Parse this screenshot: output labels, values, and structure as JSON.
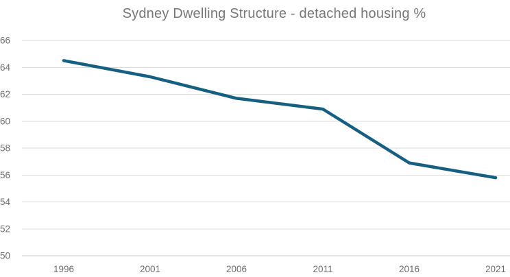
{
  "chart_data": {
    "type": "line",
    "title": "Sydney Dwelling Structure - detached housing %",
    "categories": [
      "1996",
      "2001",
      "2006",
      "2011",
      "2016",
      "2021"
    ],
    "series": [
      {
        "name": "detached housing %",
        "values": [
          64.5,
          63.3,
          61.7,
          60.9,
          56.9,
          55.8
        ]
      }
    ],
    "xlabel": "",
    "ylabel": "",
    "ylim": [
      50,
      66
    ],
    "yticks": [
      50,
      52,
      54,
      56,
      58,
      60,
      62,
      64,
      66
    ],
    "grid": "horizontal-only",
    "legend": "none",
    "markers": "none",
    "colors": {
      "line": "#156082",
      "gridline": "#d9d9d9",
      "axis_line": "#c6c6c6",
      "title_text": "#767676",
      "tick_text": "#6b6b6b",
      "background": "#ffffff"
    }
  }
}
